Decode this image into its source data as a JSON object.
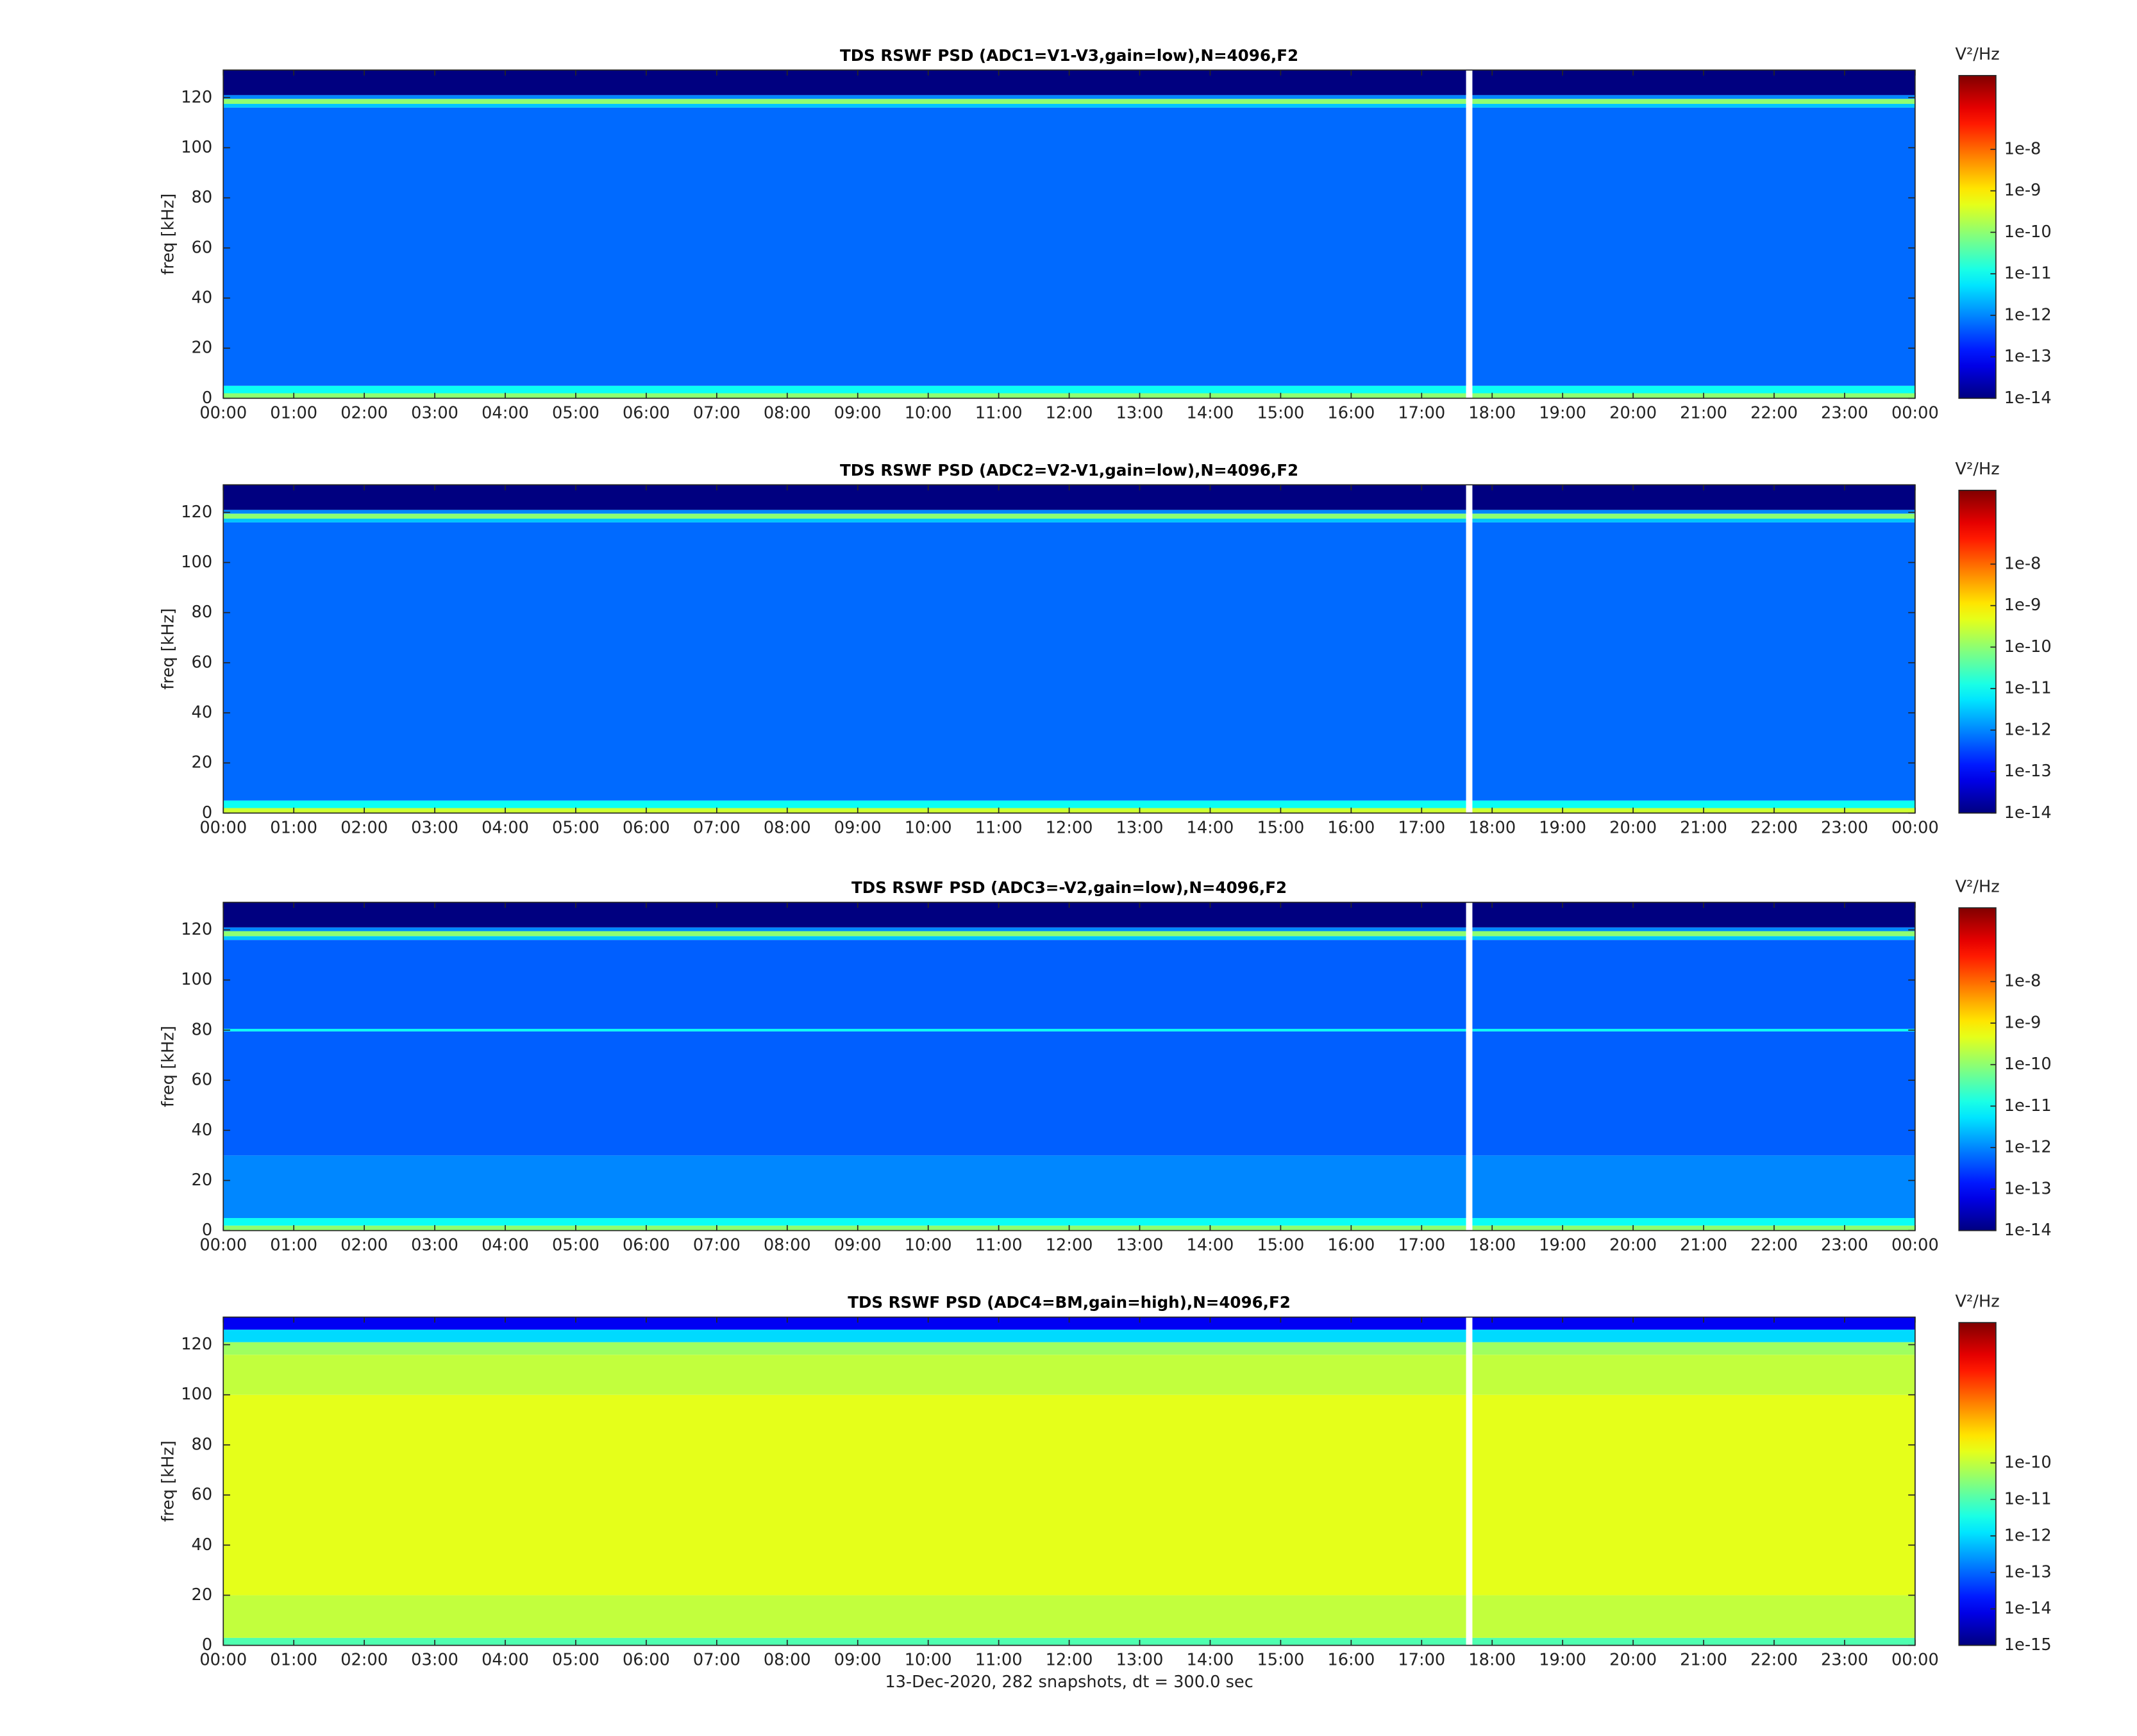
{
  "chart_data": [
    {
      "type": "heatmap",
      "title": "TDS RSWF PSD (ADC1=V1-V3,gain=low),N=4096,F2",
      "ylabel": "freq [kHz]",
      "colorbar_label": "V²/Hz",
      "xlim": [
        0,
        24
      ],
      "ylim": [
        0,
        131
      ],
      "clim": [
        1e-14,
        6e-07
      ],
      "color_scale": "log",
      "colormap": "jet",
      "xticks": [
        {
          "value": 0,
          "label": "00:00"
        },
        {
          "value": 1,
          "label": "01:00"
        },
        {
          "value": 2,
          "label": "02:00"
        },
        {
          "value": 3,
          "label": "03:00"
        },
        {
          "value": 4,
          "label": "04:00"
        },
        {
          "value": 5,
          "label": "05:00"
        },
        {
          "value": 6,
          "label": "06:00"
        },
        {
          "value": 7,
          "label": "07:00"
        },
        {
          "value": 8,
          "label": "08:00"
        },
        {
          "value": 9,
          "label": "09:00"
        },
        {
          "value": 10,
          "label": "10:00"
        },
        {
          "value": 11,
          "label": "11:00"
        },
        {
          "value": 12,
          "label": "12:00"
        },
        {
          "value": 13,
          "label": "13:00"
        },
        {
          "value": 14,
          "label": "14:00"
        },
        {
          "value": 15,
          "label": "15:00"
        },
        {
          "value": 16,
          "label": "16:00"
        },
        {
          "value": 17,
          "label": "17:00"
        },
        {
          "value": 18,
          "label": "18:00"
        },
        {
          "value": 19,
          "label": "19:00"
        },
        {
          "value": 20,
          "label": "20:00"
        },
        {
          "value": 21,
          "label": "21:00"
        },
        {
          "value": 22,
          "label": "22:00"
        },
        {
          "value": 23,
          "label": "23:00"
        },
        {
          "value": 24,
          "label": "00:00"
        }
      ],
      "yticks": [
        0,
        20,
        40,
        60,
        80,
        100,
        120
      ],
      "cticks": [
        {
          "value": 1e-14,
          "label": "1e-14"
        },
        {
          "value": 1e-13,
          "label": "1e-13"
        },
        {
          "value": 1e-12,
          "label": "1e-12"
        },
        {
          "value": 1e-11,
          "label": "1e-11"
        },
        {
          "value": 1e-10,
          "label": "1e-10"
        },
        {
          "value": 1e-09,
          "label": "1e-9"
        },
        {
          "value": 1e-08,
          "label": "1e-8"
        }
      ],
      "x": [
        0,
        17.63,
        17.72,
        24
      ],
      "y": [
        0,
        2,
        5,
        116,
        117.5,
        119.5,
        121,
        131
      ],
      "z": [
        [
          1e-10,
          null,
          1e-10
        ],
        [
          1e-11,
          null,
          1e-11
        ],
        [
          6e-13,
          null,
          6e-13
        ],
        [
          3e-12,
          null,
          3e-12
        ],
        [
          1e-10,
          null,
          1e-10
        ],
        [
          1e-12,
          null,
          1e-12
        ],
        [
          1e-14,
          null,
          1e-14
        ]
      ]
    },
    {
      "type": "heatmap",
      "title": "TDS RSWF PSD (ADC2=V2-V1,gain=low),N=4096,F2",
      "ylabel": "freq [kHz]",
      "colorbar_label": "V²/Hz",
      "xlim": [
        0,
        24
      ],
      "ylim": [
        0,
        131
      ],
      "clim": [
        1e-14,
        6e-07
      ],
      "color_scale": "log",
      "colormap": "jet",
      "xticks": [
        {
          "value": 0,
          "label": "00:00"
        },
        {
          "value": 1,
          "label": "01:00"
        },
        {
          "value": 2,
          "label": "02:00"
        },
        {
          "value": 3,
          "label": "03:00"
        },
        {
          "value": 4,
          "label": "04:00"
        },
        {
          "value": 5,
          "label": "05:00"
        },
        {
          "value": 6,
          "label": "06:00"
        },
        {
          "value": 7,
          "label": "07:00"
        },
        {
          "value": 8,
          "label": "08:00"
        },
        {
          "value": 9,
          "label": "09:00"
        },
        {
          "value": 10,
          "label": "10:00"
        },
        {
          "value": 11,
          "label": "11:00"
        },
        {
          "value": 12,
          "label": "12:00"
        },
        {
          "value": 13,
          "label": "13:00"
        },
        {
          "value": 14,
          "label": "14:00"
        },
        {
          "value": 15,
          "label": "15:00"
        },
        {
          "value": 16,
          "label": "16:00"
        },
        {
          "value": 17,
          "label": "17:00"
        },
        {
          "value": 18,
          "label": "18:00"
        },
        {
          "value": 19,
          "label": "19:00"
        },
        {
          "value": 20,
          "label": "20:00"
        },
        {
          "value": 21,
          "label": "21:00"
        },
        {
          "value": 22,
          "label": "22:00"
        },
        {
          "value": 23,
          "label": "23:00"
        },
        {
          "value": 24,
          "label": "00:00"
        }
      ],
      "yticks": [
        0,
        20,
        40,
        60,
        80,
        100,
        120
      ],
      "cticks": [
        {
          "value": 1e-14,
          "label": "1e-14"
        },
        {
          "value": 1e-13,
          "label": "1e-13"
        },
        {
          "value": 1e-12,
          "label": "1e-12"
        },
        {
          "value": 1e-11,
          "label": "1e-11"
        },
        {
          "value": 1e-10,
          "label": "1e-10"
        },
        {
          "value": 1e-09,
          "label": "1e-9"
        },
        {
          "value": 1e-08,
          "label": "1e-8"
        }
      ],
      "x": [
        0,
        17.63,
        17.72,
        24
      ],
      "y": [
        0,
        2,
        5,
        116,
        117.5,
        119.5,
        121,
        131
      ],
      "z": [
        [
          3e-10,
          null,
          3e-10
        ],
        [
          1e-11,
          null,
          1e-11
        ],
        [
          6e-13,
          null,
          6e-13
        ],
        [
          3e-12,
          null,
          3e-12
        ],
        [
          1e-10,
          null,
          1e-10
        ],
        [
          1e-12,
          null,
          1e-12
        ],
        [
          1e-14,
          null,
          1e-14
        ]
      ]
    },
    {
      "type": "heatmap",
      "title": "TDS RSWF PSD (ADC3=-V2,gain=low),N=4096,F2",
      "ylabel": "freq [kHz]",
      "colorbar_label": "V²/Hz",
      "xlim": [
        0,
        24
      ],
      "ylim": [
        0,
        131
      ],
      "clim": [
        1e-14,
        6e-07
      ],
      "color_scale": "log",
      "colormap": "jet",
      "xticks": [
        {
          "value": 0,
          "label": "00:00"
        },
        {
          "value": 1,
          "label": "01:00"
        },
        {
          "value": 2,
          "label": "02:00"
        },
        {
          "value": 3,
          "label": "03:00"
        },
        {
          "value": 4,
          "label": "04:00"
        },
        {
          "value": 5,
          "label": "05:00"
        },
        {
          "value": 6,
          "label": "06:00"
        },
        {
          "value": 7,
          "label": "07:00"
        },
        {
          "value": 8,
          "label": "08:00"
        },
        {
          "value": 9,
          "label": "09:00"
        },
        {
          "value": 10,
          "label": "10:00"
        },
        {
          "value": 11,
          "label": "11:00"
        },
        {
          "value": 12,
          "label": "12:00"
        },
        {
          "value": 13,
          "label": "13:00"
        },
        {
          "value": 14,
          "label": "14:00"
        },
        {
          "value": 15,
          "label": "15:00"
        },
        {
          "value": 16,
          "label": "16:00"
        },
        {
          "value": 17,
          "label": "17:00"
        },
        {
          "value": 18,
          "label": "18:00"
        },
        {
          "value": 19,
          "label": "19:00"
        },
        {
          "value": 20,
          "label": "20:00"
        },
        {
          "value": 21,
          "label": "21:00"
        },
        {
          "value": 22,
          "label": "22:00"
        },
        {
          "value": 23,
          "label": "23:00"
        },
        {
          "value": 24,
          "label": "00:00"
        }
      ],
      "yticks": [
        0,
        20,
        40,
        60,
        80,
        100,
        120
      ],
      "cticks": [
        {
          "value": 1e-14,
          "label": "1e-14"
        },
        {
          "value": 1e-13,
          "label": "1e-13"
        },
        {
          "value": 1e-12,
          "label": "1e-12"
        },
        {
          "value": 1e-11,
          "label": "1e-11"
        },
        {
          "value": 1e-10,
          "label": "1e-10"
        },
        {
          "value": 1e-09,
          "label": "1e-9"
        },
        {
          "value": 1e-08,
          "label": "1e-8"
        }
      ],
      "x": [
        0,
        17.63,
        17.72,
        24
      ],
      "y": [
        0,
        2,
        5,
        30,
        79.5,
        80.5,
        116,
        117.5,
        119.5,
        121,
        131
      ],
      "z": [
        [
          1e-10,
          null,
          1e-10
        ],
        [
          1e-11,
          null,
          1e-11
        ],
        [
          1e-12,
          null,
          1e-12
        ],
        [
          5e-13,
          null,
          5e-13
        ],
        [
          1e-11,
          null,
          1e-11
        ],
        [
          5e-13,
          null,
          5e-13
        ],
        [
          3e-12,
          null,
          3e-12
        ],
        [
          1e-10,
          null,
          1e-10
        ],
        [
          1e-12,
          null,
          1e-12
        ],
        [
          1e-14,
          null,
          1e-14
        ]
      ]
    },
    {
      "type": "heatmap",
      "title": "TDS RSWF PSD (ADC4=BM,gain=high),N=4096,F2",
      "ylabel": "freq [kHz]",
      "xlabel": "13-Dec-2020, 282 snapshots, dt = 300.0 sec",
      "colorbar_label": "V²/Hz",
      "xlim": [
        0,
        24
      ],
      "ylim": [
        0,
        131
      ],
      "clim": [
        1e-15,
        7e-07
      ],
      "color_scale": "log",
      "colormap": "jet",
      "xticks": [
        {
          "value": 0,
          "label": "00:00"
        },
        {
          "value": 1,
          "label": "01:00"
        },
        {
          "value": 2,
          "label": "02:00"
        },
        {
          "value": 3,
          "label": "03:00"
        },
        {
          "value": 4,
          "label": "04:00"
        },
        {
          "value": 5,
          "label": "05:00"
        },
        {
          "value": 6,
          "label": "06:00"
        },
        {
          "value": 7,
          "label": "07:00"
        },
        {
          "value": 8,
          "label": "08:00"
        },
        {
          "value": 9,
          "label": "09:00"
        },
        {
          "value": 10,
          "label": "10:00"
        },
        {
          "value": 11,
          "label": "11:00"
        },
        {
          "value": 12,
          "label": "12:00"
        },
        {
          "value": 13,
          "label": "13:00"
        },
        {
          "value": 14,
          "label": "14:00"
        },
        {
          "value": 15,
          "label": "15:00"
        },
        {
          "value": 16,
          "label": "16:00"
        },
        {
          "value": 17,
          "label": "17:00"
        },
        {
          "value": 18,
          "label": "18:00"
        },
        {
          "value": 19,
          "label": "19:00"
        },
        {
          "value": 20,
          "label": "20:00"
        },
        {
          "value": 21,
          "label": "21:00"
        },
        {
          "value": 22,
          "label": "22:00"
        },
        {
          "value": 23,
          "label": "23:00"
        },
        {
          "value": 24,
          "label": "00:00"
        }
      ],
      "yticks": [
        0,
        20,
        40,
        60,
        80,
        100,
        120
      ],
      "cticks": [
        {
          "value": 1e-15,
          "label": "1e-15"
        },
        {
          "value": 1e-14,
          "label": "1e-14"
        },
        {
          "value": 1e-13,
          "label": "1e-13"
        },
        {
          "value": 1e-12,
          "label": "1e-12"
        },
        {
          "value": 1e-11,
          "label": "1e-11"
        },
        {
          "value": 1e-10,
          "label": "1e-10"
        }
      ],
      "x": [
        0,
        17.63,
        17.72,
        24
      ],
      "y": [
        0,
        3,
        20,
        100,
        116,
        121,
        126,
        131
      ],
      "z": [
        [
          1e-11,
          null,
          1e-11
        ],
        [
          1e-10,
          null,
          1e-10
        ],
        [
          2e-10,
          null,
          2e-10
        ],
        [
          1e-10,
          null,
          1e-10
        ],
        [
          5e-11,
          null,
          5e-11
        ],
        [
          1e-12,
          null,
          1e-12
        ],
        [
          1e-14,
          null,
          1e-14
        ]
      ]
    }
  ]
}
